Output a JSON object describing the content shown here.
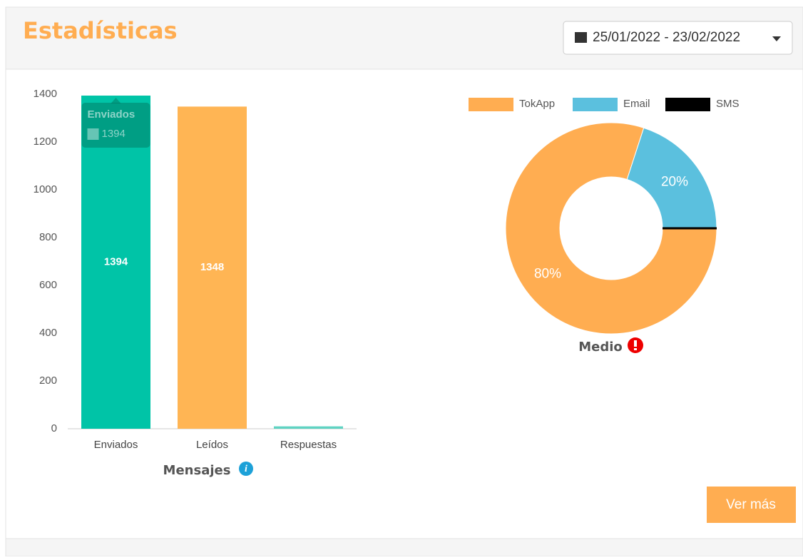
{
  "header": {
    "title": "Estadísticas",
    "date_range": "25/01/2022 - 23/02/2022"
  },
  "chart_data": [
    {
      "type": "bar",
      "xlabel": "Mensajes",
      "categories": [
        "Enviados",
        "Leídos",
        "Respuestas"
      ],
      "values": [
        1394,
        1348,
        10
      ],
      "value_labels": [
        "1394",
        "1348",
        null
      ],
      "colors": [
        "#00c4a7",
        "#ffb554",
        "#5fd3c2"
      ],
      "ylim": [
        0,
        1400
      ],
      "yticks": [
        0,
        200,
        400,
        600,
        800,
        1000,
        1200,
        1400
      ],
      "tooltip": {
        "title": "Enviados",
        "value": 1394
      }
    },
    {
      "type": "doughnut",
      "title": "Medio",
      "categories": [
        "TokApp",
        "Email",
        "SMS"
      ],
      "values": [
        80,
        20,
        0
      ],
      "value_labels": [
        "80%",
        "20%",
        null
      ],
      "colors": [
        "#ffad51",
        "#5bc0de",
        "#000000"
      ]
    }
  ],
  "button": "Ver más"
}
